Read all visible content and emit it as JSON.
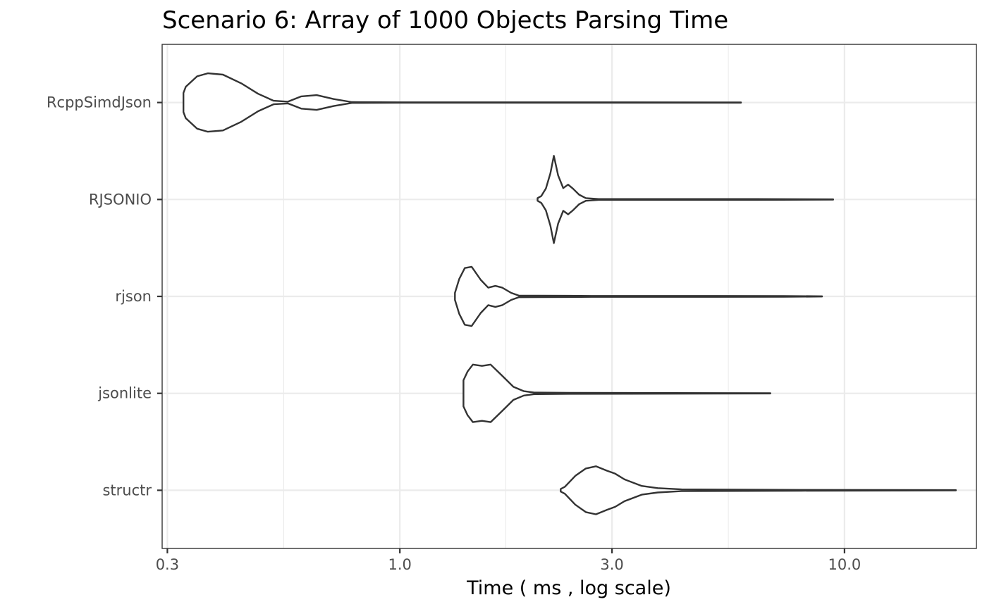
{
  "chart_data": {
    "type": "violin",
    "title": "Scenario 6: Array of 1000 Objects Parsing Time",
    "xlabel": "Time ( ms , log scale)",
    "ylabel": "",
    "x_scale": "log10",
    "xlim": [
      0.292,
      19.8
    ],
    "x_ticks": [
      0.3,
      1.0,
      3.0,
      10.0
    ],
    "x_tick_labels": [
      "0.3",
      "1.0",
      "3.0",
      "10.0"
    ],
    "x_minor_gridlines": [
      0.548,
      1.73,
      5.48
    ],
    "grid": true,
    "legend": "none",
    "categories": [
      "RcppSimdJson",
      "RJSONIO",
      "rjson",
      "jsonlite",
      "structr"
    ],
    "series": [
      {
        "name": "RcppSimdJson",
        "min": 0.326,
        "max": 5.85,
        "density": [
          [
            0.326,
            0.22
          ],
          [
            0.33,
            0.36
          ],
          [
            0.35,
            0.6
          ],
          [
            0.37,
            0.67
          ],
          [
            0.4,
            0.64
          ],
          [
            0.44,
            0.44
          ],
          [
            0.48,
            0.2
          ],
          [
            0.52,
            0.04
          ],
          [
            0.56,
            0.02
          ],
          [
            0.6,
            0.14
          ],
          [
            0.65,
            0.17
          ],
          [
            0.71,
            0.08
          ],
          [
            0.78,
            0.01
          ],
          [
            1.0,
            0.005
          ],
          [
            5.85,
            0.004
          ]
        ]
      },
      {
        "name": "RJSONIO",
        "min": 2.04,
        "max": 9.43,
        "density": [
          [
            2.04,
            0.03
          ],
          [
            2.08,
            0.08
          ],
          [
            2.13,
            0.25
          ],
          [
            2.18,
            0.6
          ],
          [
            2.22,
            1.0
          ],
          [
            2.27,
            0.55
          ],
          [
            2.33,
            0.26
          ],
          [
            2.39,
            0.34
          ],
          [
            2.45,
            0.25
          ],
          [
            2.53,
            0.11
          ],
          [
            2.62,
            0.03
          ],
          [
            2.8,
            0.01
          ],
          [
            6.3,
            0.01
          ],
          [
            9.43,
            0.004
          ]
        ]
      },
      {
        "name": "rjson",
        "min": 1.33,
        "max": 8.9,
        "density": [
          [
            1.33,
            0.08
          ],
          [
            1.36,
            0.4
          ],
          [
            1.4,
            0.65
          ],
          [
            1.45,
            0.68
          ],
          [
            1.52,
            0.38
          ],
          [
            1.58,
            0.2
          ],
          [
            1.64,
            0.24
          ],
          [
            1.7,
            0.2
          ],
          [
            1.78,
            0.08
          ],
          [
            1.85,
            0.02
          ],
          [
            2.4,
            0.015
          ],
          [
            2.7,
            0.012
          ],
          [
            7.3,
            0.01
          ],
          [
            8.9,
            0.004
          ]
        ]
      },
      {
        "name": "jsonlite",
        "min": 1.39,
        "max": 6.81,
        "density": [
          [
            1.39,
            0.3
          ],
          [
            1.42,
            0.5
          ],
          [
            1.46,
            0.66
          ],
          [
            1.53,
            0.63
          ],
          [
            1.6,
            0.66
          ],
          [
            1.7,
            0.4
          ],
          [
            1.8,
            0.15
          ],
          [
            1.9,
            0.05
          ],
          [
            2.0,
            0.02
          ],
          [
            2.4,
            0.012
          ],
          [
            6.81,
            0.004
          ]
        ]
      },
      {
        "name": "structr",
        "min": 2.3,
        "max": 17.8,
        "density": [
          [
            2.3,
            0.03
          ],
          [
            2.35,
            0.08
          ],
          [
            2.48,
            0.33
          ],
          [
            2.62,
            0.5
          ],
          [
            2.76,
            0.55
          ],
          [
            2.92,
            0.45
          ],
          [
            3.05,
            0.38
          ],
          [
            3.2,
            0.25
          ],
          [
            3.5,
            0.1
          ],
          [
            3.8,
            0.05
          ],
          [
            4.3,
            0.02
          ],
          [
            8.0,
            0.01
          ],
          [
            17.8,
            0.004
          ]
        ]
      }
    ]
  }
}
